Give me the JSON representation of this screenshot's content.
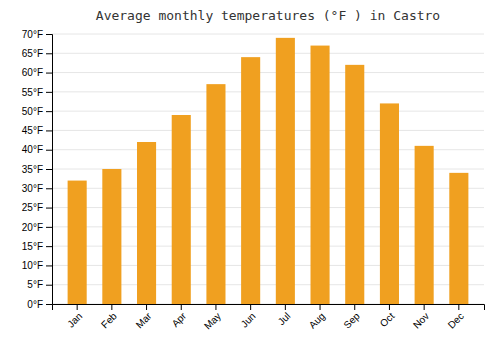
{
  "chart_data": {
    "type": "bar",
    "title": "Average monthly temperatures (°F ) in Castro",
    "categories": [
      "Jan",
      "Feb",
      "Mar",
      "Apr",
      "May",
      "Jun",
      "Jul",
      "Aug",
      "Sep",
      "Oct",
      "Nov",
      "Dec"
    ],
    "values": [
      32,
      35,
      42,
      49,
      57,
      64,
      69,
      67,
      62,
      52,
      41,
      34
    ],
    "color": "#F0A020",
    "ylim": [
      0,
      70
    ],
    "yticks": [
      {
        "value": 0,
        "label": "0°F"
      },
      {
        "value": 5,
        "label": "5°F"
      },
      {
        "value": 10,
        "label": "10°F"
      },
      {
        "value": 15,
        "label": "15°F"
      },
      {
        "value": 20,
        "label": "20°F"
      },
      {
        "value": 25,
        "label": "25°F"
      },
      {
        "value": 30,
        "label": "30°F"
      },
      {
        "value": 35,
        "label": "35°F"
      },
      {
        "value": 40,
        "label": "40°F"
      },
      {
        "value": 45,
        "label": "45°F"
      },
      {
        "value": 50,
        "label": "50°F"
      },
      {
        "value": 55,
        "label": "55°F"
      },
      {
        "value": 60,
        "label": "60°F"
      },
      {
        "value": 65,
        "label": "65°F"
      },
      {
        "value": 70,
        "label": "70°F"
      }
    ],
    "grid": true
  }
}
